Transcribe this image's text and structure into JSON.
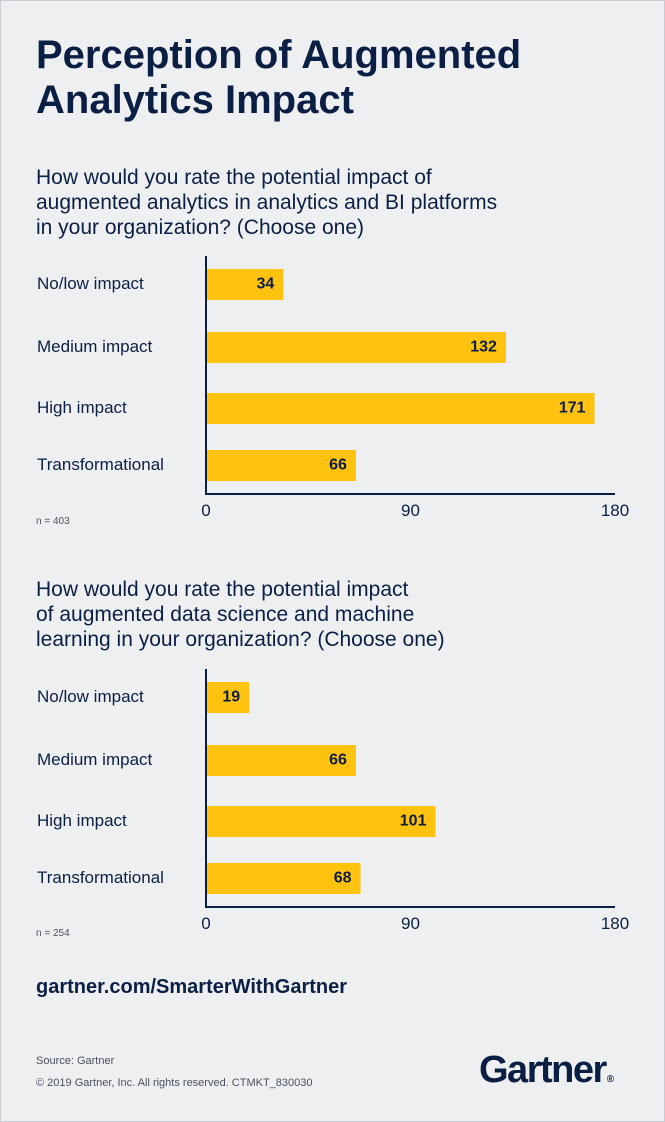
{
  "title_line1": "Perception of Augmented",
  "title_line2": "Analytics Impact",
  "chart_data": [
    {
      "type": "bar",
      "orientation": "horizontal",
      "title": "How would you rate the potential impact of augmented analytics in analytics and BI platforms in your organization? (Choose one)",
      "title_lines": [
        "How would you rate the potential impact of",
        "augmented analytics in analytics and BI platforms",
        "in your organization? (Choose one)"
      ],
      "categories": [
        "No/low impact",
        "Medium impact",
        "High impact",
        "Transformational"
      ],
      "values": [
        34,
        132,
        171,
        66
      ],
      "xlim": [
        0,
        180
      ],
      "xticks": [
        "0",
        "90",
        "180"
      ],
      "note": "n = 403",
      "bar_color": "#ffc20e",
      "grid": false
    },
    {
      "type": "bar",
      "orientation": "horizontal",
      "title": "How would you rate the potential impact of augmented data science and machine learning in your organization? (Choose one)",
      "title_lines": [
        "How would you rate the potential impact",
        "of augmented data science and machine",
        "learning in your organization? (Choose one)"
      ],
      "categories": [
        "No/low impact",
        "Medium impact",
        "High impact",
        "Transformational"
      ],
      "values": [
        19,
        66,
        101,
        68
      ],
      "xlim": [
        0,
        180
      ],
      "xticks": [
        "0",
        "90",
        "180"
      ],
      "note": "n = 254",
      "bar_color": "#ffc20e",
      "grid": false
    }
  ],
  "footer": {
    "url": "gartner.com/SmarterWithGartner",
    "source": "Source: Gartner",
    "copyright": "© 2019 Gartner, Inc. All rights reserved. CTMKT_830030",
    "logo": "Gartner",
    "logo_mark": "®"
  },
  "colors": {
    "navy": "#0b1f44",
    "bar": "#ffc20e",
    "background": "#eeeff1"
  }
}
